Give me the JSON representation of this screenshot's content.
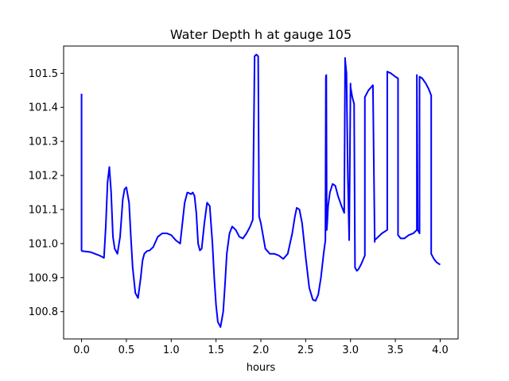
{
  "chart_data": {
    "type": "line",
    "title": "Water Depth h at gauge 105",
    "xlabel": "hours",
    "ylabel": "",
    "xlim": [
      -0.2,
      4.2
    ],
    "ylim": [
      100.72,
      101.58
    ],
    "x_ticks": [
      0.0,
      0.5,
      1.0,
      1.5,
      2.0,
      2.5,
      3.0,
      3.5,
      4.0
    ],
    "x_tick_labels": [
      "0.0",
      "0.5",
      "1.0",
      "1.5",
      "2.0",
      "2.5",
      "3.0",
      "3.5",
      "4.0"
    ],
    "y_ticks": [
      100.8,
      100.9,
      101.0,
      101.1,
      101.2,
      101.3,
      101.4,
      101.5
    ],
    "y_tick_labels": [
      "100.8",
      "100.9",
      "101.0",
      "101.1",
      "101.2",
      "101.3",
      "101.4",
      "101.5"
    ],
    "grid": false,
    "series": [
      {
        "color": "#0000ff",
        "x": [
          0.0,
          0.0,
          0.005,
          0.1,
          0.2,
          0.25,
          0.27,
          0.29,
          0.31,
          0.33,
          0.35,
          0.37,
          0.4,
          0.43,
          0.46,
          0.48,
          0.5,
          0.53,
          0.55,
          0.57,
          0.6,
          0.63,
          0.66,
          0.68,
          0.7,
          0.73,
          0.76,
          0.8,
          0.85,
          0.9,
          0.95,
          1.0,
          1.05,
          1.1,
          1.15,
          1.18,
          1.2,
          1.22,
          1.24,
          1.26,
          1.28,
          1.3,
          1.32,
          1.34,
          1.37,
          1.4,
          1.43,
          1.46,
          1.48,
          1.5,
          1.52,
          1.55,
          1.58,
          1.6,
          1.62,
          1.65,
          1.68,
          1.72,
          1.76,
          1.8,
          1.84,
          1.88,
          1.91,
          1.93,
          1.93,
          1.95,
          1.97,
          1.98,
          1.98,
          2.0,
          2.02,
          2.05,
          2.1,
          2.15,
          2.2,
          2.25,
          2.3,
          2.35,
          2.38,
          2.4,
          2.43,
          2.46,
          2.5,
          2.54,
          2.58,
          2.61,
          2.64,
          2.67,
          2.7,
          2.72,
          2.725,
          2.73,
          2.735,
          2.74,
          2.75,
          2.77,
          2.8,
          2.83,
          2.86,
          2.9,
          2.93,
          2.94,
          2.94,
          2.955,
          2.97,
          2.985,
          3.0,
          3.0,
          3.02,
          3.04,
          3.05,
          3.05,
          3.07,
          3.09,
          3.12,
          3.16,
          3.16,
          3.2,
          3.25,
          3.27,
          3.27,
          3.35,
          3.41,
          3.41,
          3.45,
          3.5,
          3.53,
          3.53,
          3.56,
          3.6,
          3.65,
          3.7,
          3.74,
          3.74,
          3.75,
          3.77,
          3.77,
          3.8,
          3.84,
          3.87,
          3.9,
          3.9,
          3.93,
          3.96,
          4.0
        ],
        "y": [
          101.44,
          100.98,
          100.978,
          100.975,
          100.965,
          100.958,
          101.05,
          101.18,
          101.225,
          101.15,
          101.02,
          100.985,
          100.97,
          101.02,
          101.13,
          101.16,
          101.165,
          101.12,
          101.02,
          100.93,
          100.855,
          100.84,
          100.9,
          100.95,
          100.97,
          100.978,
          100.98,
          100.99,
          101.02,
          101.03,
          101.03,
          101.025,
          101.01,
          101.0,
          101.12,
          101.15,
          101.148,
          101.145,
          101.15,
          101.14,
          101.09,
          101.0,
          100.98,
          100.985,
          101.06,
          101.12,
          101.11,
          101.0,
          100.9,
          100.82,
          100.77,
          100.755,
          100.8,
          100.88,
          100.97,
          101.03,
          101.05,
          101.04,
          101.02,
          101.015,
          101.03,
          101.05,
          101.07,
          101.54,
          101.55,
          101.555,
          101.55,
          101.09,
          101.08,
          101.06,
          101.03,
          100.985,
          100.97,
          100.97,
          100.965,
          100.955,
          100.97,
          101.03,
          101.08,
          101.105,
          101.1,
          101.06,
          100.96,
          100.87,
          100.835,
          100.832,
          100.85,
          100.9,
          100.97,
          101.01,
          101.49,
          101.495,
          101.04,
          101.06,
          101.11,
          101.15,
          101.175,
          101.17,
          101.14,
          101.11,
          101.09,
          101.545,
          101.54,
          101.5,
          101.2,
          101.01,
          101.47,
          101.46,
          101.43,
          101.41,
          100.945,
          100.93,
          100.92,
          100.925,
          100.94,
          100.965,
          101.43,
          101.45,
          101.465,
          101.005,
          101.01,
          101.03,
          101.04,
          101.505,
          101.5,
          101.49,
          101.485,
          101.025,
          101.015,
          101.015,
          101.025,
          101.03,
          101.04,
          101.495,
          101.04,
          101.03,
          101.49,
          101.485,
          101.47,
          101.455,
          101.435,
          100.97,
          100.955,
          100.945,
          100.938
        ]
      }
    ]
  }
}
